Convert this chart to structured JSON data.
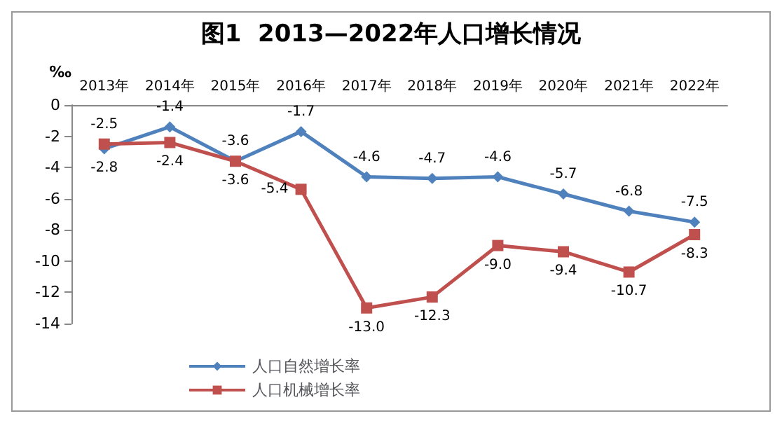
{
  "chart_data": {
    "type": "line",
    "title": "图1  2013—2022年人口增长情况",
    "ylabel": "‰",
    "categories": [
      "2013年",
      "2014年",
      "2015年",
      "2016年",
      "2017年",
      "2018年",
      "2019年",
      "2020年",
      "2021年",
      "2022年"
    ],
    "series": [
      {
        "name": "人口自然增长率",
        "color": "#4f81bd",
        "marker": "diamond",
        "values": [
          -2.8,
          -1.4,
          -3.6,
          -1.7,
          -4.6,
          -4.7,
          -4.6,
          -5.7,
          -6.8,
          -7.5
        ],
        "value_labels": [
          "-2.8",
          "-1.4",
          "-3.6",
          "-1.7",
          "-4.6",
          "-4.7",
          "-4.6",
          "-5.7",
          "-6.8",
          "-7.5"
        ]
      },
      {
        "name": "人口机械增长率",
        "color": "#c0504d",
        "marker": "square",
        "values": [
          -2.5,
          -2.4,
          -3.6,
          -5.4,
          -13.0,
          -12.3,
          -9.0,
          -9.4,
          -10.7,
          -8.3
        ],
        "value_labels": [
          "-2.5",
          "-2.4",
          "-3.6",
          "-5.4",
          "-13.0",
          "-12.3",
          "-9.0",
          "-9.4",
          "-10.7",
          "-8.3"
        ]
      }
    ],
    "ylim": [
      -14,
      0
    ],
    "yticks": [
      0,
      -2,
      -4,
      -6,
      -8,
      -10,
      -12,
      -14
    ],
    "grid": false,
    "legend": "bottom",
    "line_style": "solid"
  }
}
